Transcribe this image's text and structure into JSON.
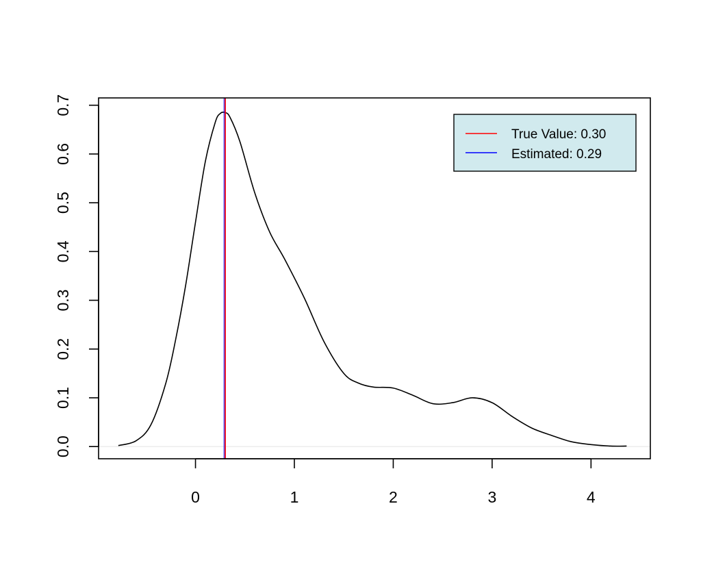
{
  "chart_data": {
    "type": "line",
    "title": "",
    "xlabel": "",
    "ylabel": "",
    "xlim": [
      -0.98,
      4.6
    ],
    "ylim": [
      -0.025,
      0.715
    ],
    "x_ticks": [
      0,
      1,
      2,
      3,
      4
    ],
    "x_tick_labels": [
      "0",
      "1",
      "2",
      "3",
      "4"
    ],
    "y_ticks": [
      0.0,
      0.1,
      0.2,
      0.3,
      0.4,
      0.5,
      0.6,
      0.7
    ],
    "y_tick_labels": [
      "0.0",
      "0.1",
      "0.2",
      "0.3",
      "0.4",
      "0.5",
      "0.6",
      "0.7"
    ],
    "grid": false,
    "baseline": {
      "y": 0.0,
      "color": "#e6e6e6"
    },
    "series": [
      {
        "color": "#000000",
        "x": [
          -0.78,
          -0.6,
          -0.45,
          -0.3,
          -0.2,
          -0.1,
          0.0,
          0.1,
          0.2,
          0.25,
          0.3,
          0.35,
          0.45,
          0.6,
          0.75,
          0.9,
          1.1,
          1.3,
          1.5,
          1.65,
          1.8,
          2.0,
          2.2,
          2.4,
          2.6,
          2.8,
          3.0,
          3.2,
          3.4,
          3.6,
          3.8,
          4.0,
          4.2,
          4.36
        ],
        "y": [
          0.002,
          0.012,
          0.045,
          0.13,
          0.22,
          0.33,
          0.46,
          0.585,
          0.665,
          0.683,
          0.685,
          0.675,
          0.625,
          0.52,
          0.44,
          0.385,
          0.305,
          0.215,
          0.15,
          0.13,
          0.122,
          0.12,
          0.105,
          0.088,
          0.09,
          0.1,
          0.09,
          0.062,
          0.038,
          0.023,
          0.01,
          0.004,
          0.001,
          0.001
        ]
      }
    ],
    "vlines": [
      {
        "name": "True Value: 0.30",
        "x": 0.3,
        "color": "#ff0000"
      },
      {
        "name": "Estimated: 0.29",
        "x": 0.29,
        "color": "#0000ff"
      }
    ],
    "legend": {
      "position": "top-right",
      "background": "#d1eaee",
      "entries": [
        {
          "label": "True Value: 0.30",
          "color": "#ff0000"
        },
        {
          "label": "Estimated: 0.29",
          "color": "#0000ff"
        }
      ]
    }
  }
}
